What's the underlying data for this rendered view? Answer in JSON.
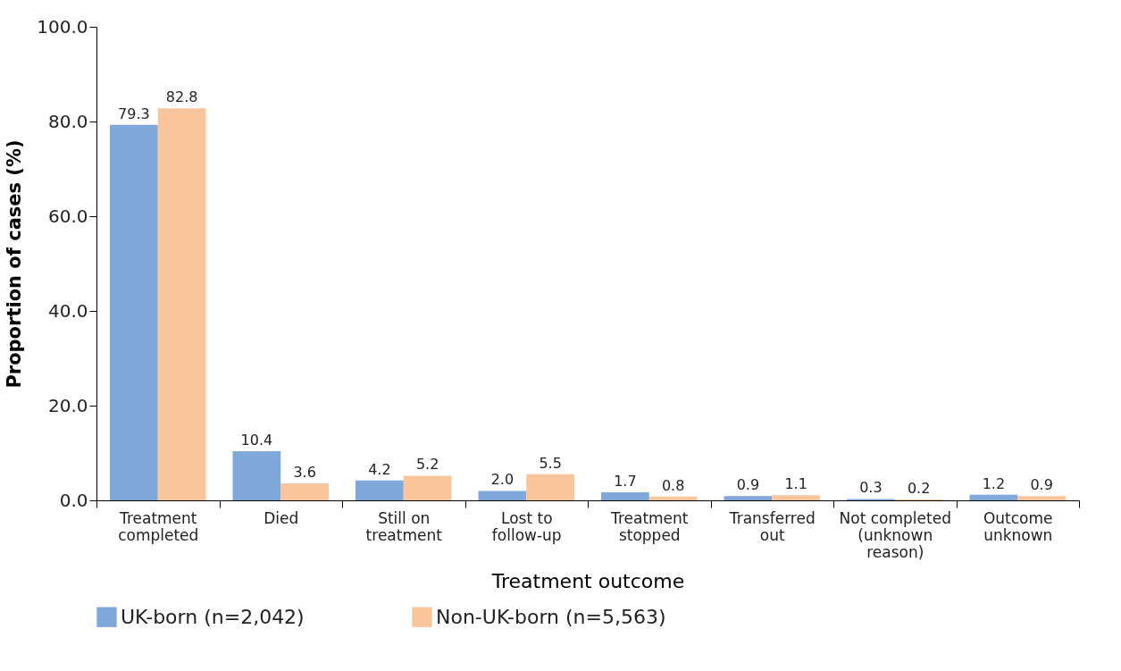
{
  "chart_data": {
    "type": "bar",
    "xlabel": "Treatment outcome",
    "ylabel": "Proportion of cases (%)",
    "categories": [
      "Treatment\ncompleted",
      "Died",
      "Still on\ntreatment",
      "Lost to\nfollow-up",
      "Treatment\nstopped",
      "Transferred\nout",
      "Not completed\n(unknown\nreason)",
      "Outcome\nunknown"
    ],
    "series": [
      {
        "name": "UK-born (n=2,042)",
        "color": "#7fa7d9",
        "values": [
          79.3,
          10.4,
          4.2,
          2.0,
          1.7,
          0.9,
          0.3,
          1.2
        ],
        "value_labels": [
          "79.3",
          "10.4",
          "4.2",
          "2.0",
          "1.7",
          "0.9",
          "0.3",
          "1.2"
        ]
      },
      {
        "name": "Non-UK-born (n=5,563)",
        "color": "#f9c59c",
        "values": [
          82.8,
          3.6,
          5.2,
          5.5,
          0.8,
          1.1,
          0.2,
          0.9
        ],
        "value_labels": [
          "82.8",
          "3.6",
          "5.2",
          "5.5",
          "0.8",
          "1.1",
          "0.2",
          "0.9"
        ]
      }
    ],
    "ylim": [
      0,
      100
    ],
    "yticks": [
      {
        "value": 0,
        "label": "0.0"
      },
      {
        "value": 20,
        "label": "20.0"
      },
      {
        "value": 40,
        "label": "40.0"
      },
      {
        "value": 60,
        "label": "60.0"
      },
      {
        "value": 80,
        "label": "80.0"
      },
      {
        "value": 100,
        "label": "100.0"
      }
    ],
    "grid": false,
    "legend": "bottom"
  }
}
